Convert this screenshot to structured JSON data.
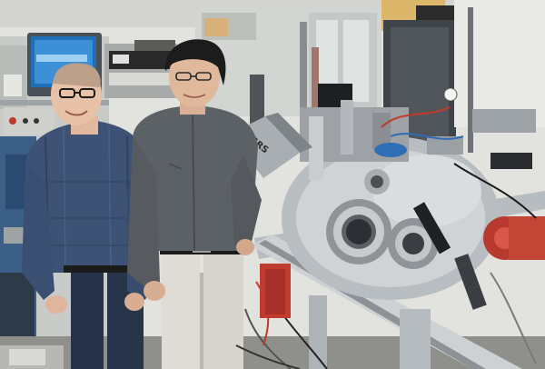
{
  "photo": {
    "instrument_label": "SRS"
  },
  "colors": {
    "wall": "#e4e4e0",
    "shelving": "#cfd2d0",
    "steel_light": "#c9cdd0",
    "steel_dark": "#6f747a",
    "shirt_left": "#3a4d6e",
    "shirt_right": "#5a5e63",
    "pants_left": "#263246",
    "pants_right": "#dcdad2",
    "accent_red": "#c0392b",
    "accent_blue": "#2e6db5",
    "floor": "#8a8a86"
  },
  "icons": [
    "lab-monitor",
    "vacuum-chamber",
    "viewport-flange",
    "cable-bundle"
  ]
}
